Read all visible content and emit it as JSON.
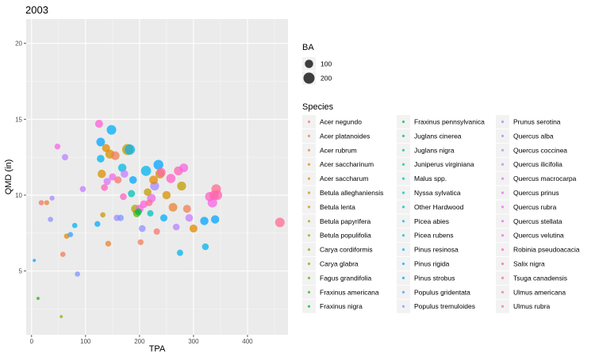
{
  "chart_data": {
    "type": "scatter",
    "title": "2003",
    "xlabel": "TPA",
    "ylabel": "QMD (in)",
    "xlim": [
      -10,
      475
    ],
    "ylim": [
      0.8,
      21.6
    ],
    "xticks": [
      0,
      100,
      200,
      300,
      400
    ],
    "yticks": [
      5,
      10,
      15,
      20
    ],
    "grid": true,
    "legend_placement": "right",
    "size_legend": {
      "title": "BA",
      "entries": [
        {
          "label": "100",
          "value": 100
        },
        {
          "label": "200",
          "value": 200
        }
      ]
    },
    "color_legend": {
      "title": "Species",
      "entries": [
        {
          "label": "Acer negundo",
          "color": "#F8766D"
        },
        {
          "label": "Acer platanoides",
          "color": "#F27D53"
        },
        {
          "label": "Acer rubrum",
          "color": "#EA8331"
        },
        {
          "label": "Acer saccharinum",
          "color": "#E18A00"
        },
        {
          "label": "Acer saccharum",
          "color": "#D89000"
        },
        {
          "label": "Betula alleghaniensis",
          "color": "#CD9600"
        },
        {
          "label": "Betula lenta",
          "color": "#C19C00"
        },
        {
          "label": "Betula papyrifera",
          "color": "#B3A000"
        },
        {
          "label": "Betula populifolia",
          "color": "#A3A500"
        },
        {
          "label": "Carya cordiformis",
          "color": "#92A900"
        },
        {
          "label": "Carya glabra",
          "color": "#7CAE00"
        },
        {
          "label": "Fagus grandifolia",
          "color": "#5EB300"
        },
        {
          "label": "Fraxinus americana",
          "color": "#2BB600"
        },
        {
          "label": "Fraxinus nigra",
          "color": "#00B92E"
        },
        {
          "label": "Fraxinus pennsylvanica",
          "color": "#00BB4E"
        },
        {
          "label": "Juglans cinerea",
          "color": "#00BE67"
        },
        {
          "label": "Juglans nigra",
          "color": "#00BF7D"
        },
        {
          "label": "Juniperus virginiana",
          "color": "#00C092"
        },
        {
          "label": "Malus spp.",
          "color": "#00C1A5"
        },
        {
          "label": "Nyssa sylvatica",
          "color": "#00C0B8"
        },
        {
          "label": "Other Hardwood",
          "color": "#00BFC4"
        },
        {
          "label": "Picea abies",
          "color": "#00BDD4"
        },
        {
          "label": "Picea rubens",
          "color": "#00BAE0"
        },
        {
          "label": "Pinus resinosa",
          "color": "#00B4EF"
        },
        {
          "label": "Pinus rigida",
          "color": "#00ADFA"
        },
        {
          "label": "Pinus strobus",
          "color": "#00A5FF"
        },
        {
          "label": "Populus gridentata",
          "color": "#359CFF"
        },
        {
          "label": "Populus tremuloides",
          "color": "#7997FF"
        },
        {
          "label": "Prunus serotina",
          "color": "#8F91FF"
        },
        {
          "label": "Quercus alba",
          "color": "#A58AFF"
        },
        {
          "label": "Quercus coccinea",
          "color": "#B983FF"
        },
        {
          "label": "Quercus ilicifolia",
          "color": "#C77CFF"
        },
        {
          "label": "Quercus macrocarpa",
          "color": "#D575FE"
        },
        {
          "label": "Quercus prinus",
          "color": "#E26EF7"
        },
        {
          "label": "Quercus rubra",
          "color": "#ED68ED"
        },
        {
          "label": "Quercus stellata",
          "color": "#F564E3"
        },
        {
          "label": "Quercus velutina",
          "color": "#FB61D7"
        },
        {
          "label": "Robinia pseudoacacia",
          "color": "#FF61C9"
        },
        {
          "label": "Salix nigra",
          "color": "#FF63B6"
        },
        {
          "label": "Tsuga canadensis",
          "color": "#FF66A8"
        },
        {
          "label": "Ulmus americana",
          "color": "#FF6C91"
        },
        {
          "label": "Ulmus rubra",
          "color": "#FC717F"
        }
      ]
    },
    "points": [
      {
        "x": 5,
        "y": 5.7,
        "ba": 5,
        "color": "#00A5FF"
      },
      {
        "x": 12,
        "y": 3.2,
        "ba": 5,
        "color": "#2BB600"
      },
      {
        "x": 18,
        "y": 9.5,
        "ba": 30,
        "color": "#F8766D"
      },
      {
        "x": 28,
        "y": 9.5,
        "ba": 25,
        "color": "#EA8331"
      },
      {
        "x": 35,
        "y": 8.4,
        "ba": 30,
        "color": "#8F91FF"
      },
      {
        "x": 38,
        "y": 9.8,
        "ba": 25,
        "color": "#A58AFF"
      },
      {
        "x": 48,
        "y": 13.2,
        "ba": 40,
        "color": "#F564E3"
      },
      {
        "x": 55,
        "y": 2.0,
        "ba": 5,
        "color": "#A3A500"
      },
      {
        "x": 58,
        "y": 6.1,
        "ba": 30,
        "color": "#F27D53"
      },
      {
        "x": 62,
        "y": 12.5,
        "ba": 50,
        "color": "#B983FF"
      },
      {
        "x": 65,
        "y": 7.3,
        "ba": 30,
        "color": "#E18A00"
      },
      {
        "x": 72,
        "y": 7.4,
        "ba": 30,
        "color": "#359CFF"
      },
      {
        "x": 80,
        "y": 8.0,
        "ba": 30,
        "color": "#00B4EF"
      },
      {
        "x": 85,
        "y": 4.8,
        "ba": 30,
        "color": "#7997FF"
      },
      {
        "x": 95,
        "y": 10.4,
        "ba": 45,
        "color": "#C77CFF"
      },
      {
        "x": 122,
        "y": 8.1,
        "ba": 40,
        "color": "#00ADFA"
      },
      {
        "x": 125,
        "y": 14.7,
        "ba": 90,
        "color": "#FB61D7"
      },
      {
        "x": 128,
        "y": 13.5,
        "ba": 110,
        "color": "#00A5FF"
      },
      {
        "x": 128,
        "y": 12.4,
        "ba": 80,
        "color": "#00B4EF"
      },
      {
        "x": 130,
        "y": 11.4,
        "ba": 100,
        "color": "#D89000"
      },
      {
        "x": 132,
        "y": 8.7,
        "ba": 30,
        "color": "#CD9600"
      },
      {
        "x": 135,
        "y": 10.5,
        "ba": 60,
        "color": "#FF63B6"
      },
      {
        "x": 138,
        "y": 13.1,
        "ba": 90,
        "color": "#E18A00"
      },
      {
        "x": 140,
        "y": 10.9,
        "ba": 70,
        "color": "#D575FE"
      },
      {
        "x": 142,
        "y": 6.8,
        "ba": 40,
        "color": "#EA8331"
      },
      {
        "x": 145,
        "y": 12.7,
        "ba": 120,
        "color": "#D89000"
      },
      {
        "x": 148,
        "y": 14.3,
        "ba": 140,
        "color": "#00ADFA"
      },
      {
        "x": 150,
        "y": 11.2,
        "ba": 70,
        "color": "#ED68ED"
      },
      {
        "x": 155,
        "y": 12.6,
        "ba": 110,
        "color": "#F27D53"
      },
      {
        "x": 158,
        "y": 8.5,
        "ba": 50,
        "color": "#A58AFF"
      },
      {
        "x": 160,
        "y": 11.0,
        "ba": 70,
        "color": "#F8766D"
      },
      {
        "x": 165,
        "y": 8.5,
        "ba": 50,
        "color": "#7997FF"
      },
      {
        "x": 168,
        "y": 11.8,
        "ba": 100,
        "color": "#00BAE0"
      },
      {
        "x": 170,
        "y": 9.9,
        "ba": 60,
        "color": "#FF61C9"
      },
      {
        "x": 172,
        "y": 11.4,
        "ba": 80,
        "color": "#C77CFF"
      },
      {
        "x": 178,
        "y": 13.0,
        "ba": 200,
        "color": "#CD9600"
      },
      {
        "x": 182,
        "y": 13.0,
        "ba": 170,
        "color": "#00B4EF"
      },
      {
        "x": 185,
        "y": 10.1,
        "ba": 70,
        "color": "#00C0B8"
      },
      {
        "x": 188,
        "y": 11.0,
        "ba": 80,
        "color": "#00A5FF"
      },
      {
        "x": 192,
        "y": 9.1,
        "ba": 100,
        "color": "#B3A000"
      },
      {
        "x": 195,
        "y": 8.8,
        "ba": 80,
        "color": "#5EB300"
      },
      {
        "x": 198,
        "y": 8.9,
        "ba": 60,
        "color": "#00BB4E"
      },
      {
        "x": 200,
        "y": 9.1,
        "ba": 90,
        "color": "#F564E3"
      },
      {
        "x": 202,
        "y": 6.9,
        "ba": 40,
        "color": "#F27D53"
      },
      {
        "x": 205,
        "y": 7.8,
        "ba": 60,
        "color": "#8F91FF"
      },
      {
        "x": 208,
        "y": 9.4,
        "ba": 80,
        "color": "#FB61D7"
      },
      {
        "x": 212,
        "y": 11.6,
        "ba": 160,
        "color": "#00B4EF"
      },
      {
        "x": 215,
        "y": 10.2,
        "ba": 80,
        "color": "#C19C00"
      },
      {
        "x": 218,
        "y": 9.5,
        "ba": 60,
        "color": "#FF6C91"
      },
      {
        "x": 220,
        "y": 8.8,
        "ba": 50,
        "color": "#00BFC4"
      },
      {
        "x": 222,
        "y": 9.8,
        "ba": 110,
        "color": "#ED68ED"
      },
      {
        "x": 226,
        "y": 11.0,
        "ba": 110,
        "color": "#E18A00"
      },
      {
        "x": 228,
        "y": 10.6,
        "ba": 120,
        "color": "#A58AFF"
      },
      {
        "x": 232,
        "y": 7.6,
        "ba": 50,
        "color": "#F8766D"
      },
      {
        "x": 235,
        "y": 12.0,
        "ba": 150,
        "color": "#00A5FF"
      },
      {
        "x": 238,
        "y": 11.4,
        "ba": 130,
        "color": "#CD9600"
      },
      {
        "x": 240,
        "y": 11.5,
        "ba": 120,
        "color": "#FF66A8"
      },
      {
        "x": 245,
        "y": 8.5,
        "ba": 70,
        "color": "#00ADFA"
      },
      {
        "x": 250,
        "y": 10.0,
        "ba": 100,
        "color": "#D89000"
      },
      {
        "x": 258,
        "y": 11.1,
        "ba": 130,
        "color": "#FF61C9"
      },
      {
        "x": 262,
        "y": 9.2,
        "ba": 110,
        "color": "#EA8331"
      },
      {
        "x": 268,
        "y": 7.9,
        "ba": 60,
        "color": "#B983FF"
      },
      {
        "x": 272,
        "y": 11.6,
        "ba": 120,
        "color": "#FF63B6"
      },
      {
        "x": 275,
        "y": 6.2,
        "ba": 50,
        "color": "#00B4EF"
      },
      {
        "x": 278,
        "y": 10.6,
        "ba": 120,
        "color": "#C19C00"
      },
      {
        "x": 282,
        "y": 11.8,
        "ba": 110,
        "color": "#F564E3"
      },
      {
        "x": 288,
        "y": 9.1,
        "ba": 90,
        "color": "#F27D53"
      },
      {
        "x": 292,
        "y": 8.5,
        "ba": 80,
        "color": "#C77CFF"
      },
      {
        "x": 300,
        "y": 7.8,
        "ba": 90,
        "color": "#E18A00"
      },
      {
        "x": 320,
        "y": 8.3,
        "ba": 100,
        "color": "#00A5FF"
      },
      {
        "x": 322,
        "y": 6.6,
        "ba": 60,
        "color": "#00B4EF"
      },
      {
        "x": 330,
        "y": 9.9,
        "ba": 130,
        "color": "#FF61C9"
      },
      {
        "x": 335,
        "y": 9.5,
        "ba": 140,
        "color": "#F564E3"
      },
      {
        "x": 338,
        "y": 10.0,
        "ba": 130,
        "color": "#FF66A8"
      },
      {
        "x": 340,
        "y": 8.4,
        "ba": 100,
        "color": "#00A5FF"
      },
      {
        "x": 342,
        "y": 10.4,
        "ba": 140,
        "color": "#FF6C91"
      },
      {
        "x": 344,
        "y": 10.0,
        "ba": 150,
        "color": "#FF63B6"
      },
      {
        "x": 460,
        "y": 8.2,
        "ba": 140,
        "color": "#FF6C91"
      }
    ]
  }
}
